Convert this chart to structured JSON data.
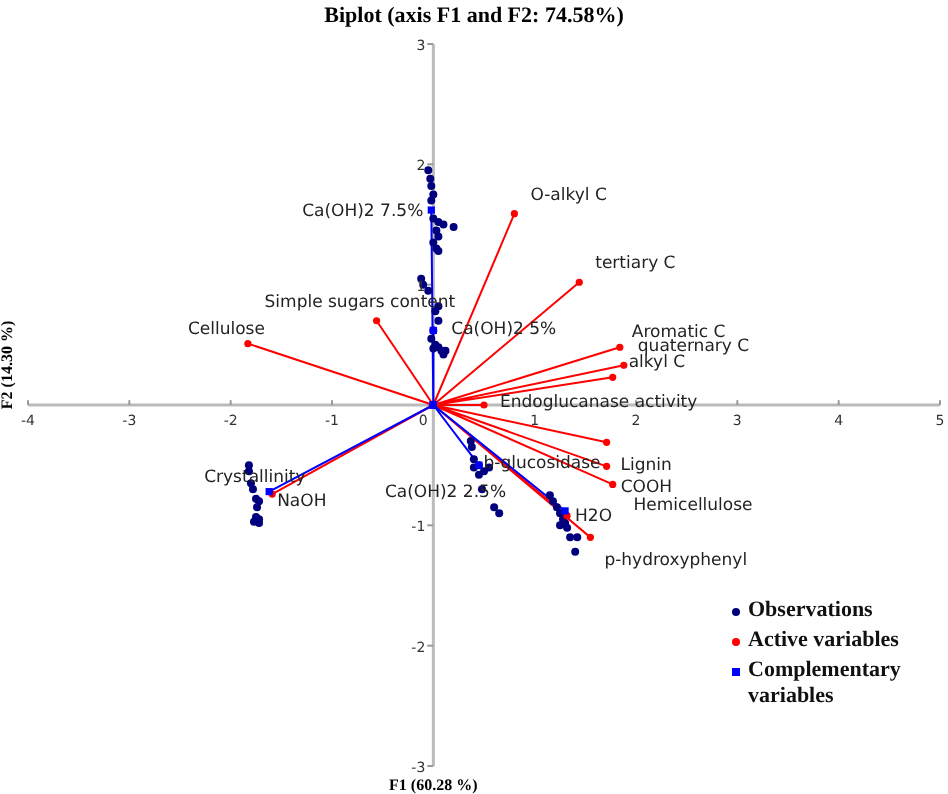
{
  "chart_data": {
    "type": "scatter",
    "title": "Biplot (axis F1 and F2: 74.58%)",
    "xlabel": "F1 (60.28 %)",
    "ylabel": "F2 (14.30 %)",
    "xlim": [
      -4,
      5
    ],
    "xticks": [
      -4,
      -3,
      -2,
      -1,
      0,
      1,
      2,
      3,
      4,
      5
    ],
    "ylim": [
      -3,
      3
    ],
    "yticks": [
      -3,
      -2,
      -1,
      {
        "value": 0,
        "label": null
      },
      1,
      2,
      3
    ],
    "grid": false,
    "legend": "bottom right",
    "series": [
      {
        "name": "Observations",
        "color": "#00007f",
        "marker": "circle",
        "x": [
          -0.05,
          -0.03,
          -0.02,
          0,
          -0.02,
          0,
          0.05,
          0.1,
          0.2,
          0.03,
          0.05,
          0,
          0.03,
          0.05,
          -0.12,
          -0.1,
          -0.05,
          0.05,
          0.02,
          0.05,
          0,
          -0.02,
          0.02,
          0.05,
          0.08,
          0.1,
          0.12,
          0,
          -1.82,
          -1.82,
          -1.8,
          -1.78,
          -1.75,
          -1.72,
          -1.74,
          -1.75,
          -1.72,
          -1.77,
          -1.72,
          0.37,
          0.38,
          0.4,
          0.45,
          0.4,
          0.5,
          0.55,
          0.45,
          0.48,
          0.6,
          0.65,
          1.15,
          1.18,
          1.22,
          1.25,
          1.28,
          1.3,
          1.25,
          1.32,
          1.35,
          1.42,
          1.4
        ],
        "values": [
          1.95,
          1.88,
          1.82,
          1.75,
          1.7,
          1.55,
          1.52,
          1.5,
          1.48,
          1.45,
          1.4,
          1.35,
          1.3,
          1.28,
          1.05,
          1.0,
          0.95,
          0.82,
          0.78,
          0.7,
          0.62,
          0.55,
          0.5,
          0.48,
          0.45,
          0.42,
          0.45,
          0.47,
          -0.5,
          -0.55,
          -0.65,
          -0.7,
          -0.78,
          -0.8,
          -0.85,
          -0.93,
          -0.95,
          -0.97,
          -0.98,
          -0.3,
          -0.35,
          -0.45,
          -0.5,
          -0.52,
          -0.55,
          -0.52,
          -0.58,
          -0.7,
          -0.85,
          -0.9,
          -0.75,
          -0.8,
          -0.85,
          -0.9,
          -0.95,
          -0.98,
          -1.0,
          -1.02,
          -1.1,
          -1.1,
          -1.22
        ]
      },
      {
        "name": "Active variables",
        "type": "line",
        "color": "#ff0000",
        "marker": "circle",
        "x": [
          0,
          0.8,
          0,
          1.44,
          0,
          1.84,
          0,
          1.88,
          0,
          1.77,
          0,
          -1.83,
          0,
          -0.56,
          0,
          0.5,
          0,
          1.71,
          0,
          1.71,
          0,
          1.77,
          0,
          1.32,
          0,
          1.55,
          0,
          -1.59
        ],
        "values": [
          0,
          1.59,
          0,
          1.02,
          0,
          0.48,
          0,
          0.33,
          0,
          0.23,
          0,
          0.51,
          0,
          0.7,
          0,
          0,
          0,
          -0.31,
          0,
          -0.51,
          0,
          -0.66,
          0,
          -0.92,
          0,
          -1.1,
          0,
          -0.74
        ]
      },
      {
        "name": "Complementary variables",
        "type": "line",
        "color": "#0000ff",
        "marker": "square",
        "x": [
          0,
          -0.02,
          0,
          0,
          0,
          0.45,
          0,
          1.3,
          0,
          -1.62
        ],
        "values": [
          0,
          1.62,
          0,
          0.62,
          0,
          -0.5,
          0,
          -0.88,
          0,
          -0.72
        ]
      }
    ],
    "annotations": [
      {
        "text": "O-alkyl C",
        "x": 0.8,
        "y": 1.59
      },
      {
        "text": "tertiary C",
        "x": 1.44,
        "y": 1.02
      },
      {
        "text": "Aromatic C",
        "x": 1.84,
        "y": 0.48
      },
      {
        "text": "quaternary C",
        "x": 1.88,
        "y": 0.33
      },
      {
        "text": "alkyl C",
        "x": 1.77,
        "y": 0.23
      },
      {
        "text": "Cellulose",
        "x": -1.83,
        "y": 0.51
      },
      {
        "text": "Simple sugars content",
        "x": -0.56,
        "y": 0.7
      },
      {
        "text": "Ca(OH)2 7.5%",
        "x": -0.02,
        "y": 1.62
      },
      {
        "text": "Ca(OH)2 5%",
        "x": 0,
        "y": 0.62
      },
      {
        "text": "Endoglucanase activity",
        "x": 0.5,
        "y": 0
      },
      {
        "text": "b-glucosidase",
        "x": 1.71,
        "y": -0.31
      },
      {
        "text": "Lignin",
        "x": 1.71,
        "y": -0.51
      },
      {
        "text": "COOH",
        "x": 1.77,
        "y": -0.66
      },
      "Hemicellulose",
      {
        "text": "H2O",
        "x": 1.3,
        "y": -0.88
      },
      {
        "text": "p-hydroxyphenyl",
        "x": 1.55,
        "y": -1.1
      },
      {
        "text": "Crystallinity",
        "x": -1.59,
        "y": -0.74
      },
      {
        "text": "NaOH",
        "x": -1.62,
        "y": -0.72
      },
      {
        "text": "Ca(OH)2 2.5%",
        "x": 0.45,
        "y": -0.5
      }
    ]
  }
}
